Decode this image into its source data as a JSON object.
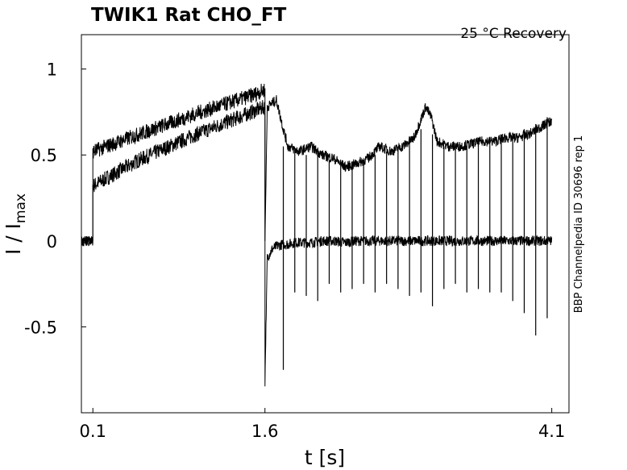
{
  "chart_data": {
    "type": "line",
    "title": "TWIK1  Rat  CHO_FT",
    "annotation": "25 °C  Recovery",
    "side_label": "BBP Channelpedia ID 30696 rep 1",
    "xlabel": "t [s]",
    "ylabel_main": "I / I",
    "ylabel_sub": "max",
    "xlim": [
      0.0,
      4.25
    ],
    "ylim": [
      -1.0,
      1.2
    ],
    "x_ticks": [
      {
        "value": 0.1,
        "label": "0.1"
      },
      {
        "value": 1.6,
        "label": "1.6"
      },
      {
        "value": 4.1,
        "label": "4.1"
      }
    ],
    "y_ticks": [
      {
        "value": 1.0,
        "label": "1"
      },
      {
        "value": 0.5,
        "label": "0.5"
      },
      {
        "value": 0.0,
        "label": "0"
      },
      {
        "value": -0.5,
        "label": "-0.5"
      }
    ],
    "series": [
      {
        "x": [
          0.0,
          0.1,
          0.1,
          0.5,
          1.0,
          1.6,
          1.6,
          1.62,
          1.66,
          1.7,
          1.76,
          1.8,
          1.86,
          1.9,
          2.0,
          2.1,
          2.2,
          2.3,
          2.4,
          2.6,
          2.8,
          2.95,
          3.05,
          3.1,
          3.2,
          3.4,
          3.6,
          3.8,
          3.9,
          4.0,
          4.05,
          4.1
        ],
        "y": [
          0.0,
          0.0,
          0.32,
          0.47,
          0.62,
          0.78,
          -0.82,
          -0.1,
          -0.05,
          -0.03,
          -0.02,
          -0.02,
          -0.01,
          -0.01,
          -0.01,
          0.0,
          0.0,
          -0.01,
          0.0,
          0.0,
          0.0,
          0.0,
          0.0,
          0.0,
          0.0,
          0.0,
          0.0,
          0.0,
          0.0,
          0.0,
          0.0,
          0.0
        ]
      },
      {
        "x": [
          0.0,
          0.1,
          0.1,
          0.5,
          1.0,
          1.5,
          1.6,
          1.6,
          1.62,
          1.66,
          1.7,
          1.76,
          1.8,
          1.9,
          2.0,
          2.1,
          2.2,
          2.3,
          2.4,
          2.5,
          2.6,
          2.7,
          2.8,
          2.9,
          3.0,
          3.05,
          3.1,
          3.2,
          3.3,
          3.5,
          3.6,
          3.7,
          3.8,
          3.9,
          4.0,
          4.1
        ],
        "y": [
          0.0,
          0.0,
          0.52,
          0.62,
          0.74,
          0.85,
          0.88,
          0.0,
          0.78,
          0.8,
          0.82,
          0.65,
          0.55,
          0.52,
          0.55,
          0.5,
          0.48,
          0.43,
          0.45,
          0.48,
          0.55,
          0.52,
          0.55,
          0.6,
          0.78,
          0.72,
          0.58,
          0.55,
          0.55,
          0.58,
          0.58,
          0.6,
          0.6,
          0.62,
          0.66,
          0.7
        ]
      }
    ],
    "pulse_times": [
      1.76,
      1.86,
      1.96,
      2.06,
      2.16,
      2.26,
      2.36,
      2.46,
      2.56,
      2.66,
      2.76,
      2.86,
      2.96,
      3.06,
      3.16,
      3.26,
      3.36,
      3.46,
      3.56,
      3.66,
      3.76,
      3.86,
      3.96,
      4.06
    ],
    "pulse_peaks": [
      0.55,
      0.53,
      0.5,
      0.5,
      0.47,
      0.46,
      0.45,
      0.47,
      0.5,
      0.52,
      0.55,
      0.58,
      0.65,
      0.62,
      0.55,
      0.57,
      0.58,
      0.6,
      0.6,
      0.62,
      0.63,
      0.65,
      0.68,
      0.72
    ],
    "pulse_dips": [
      -0.75,
      -0.3,
      -0.32,
      -0.35,
      -0.25,
      -0.3,
      -0.28,
      -0.25,
      -0.3,
      -0.25,
      -0.28,
      -0.32,
      -0.3,
      -0.38,
      -0.28,
      -0.25,
      -0.3,
      -0.28,
      -0.3,
      -0.3,
      -0.35,
      -0.42,
      -0.55,
      -0.45
    ],
    "grid": false,
    "line_color": "#000000"
  }
}
